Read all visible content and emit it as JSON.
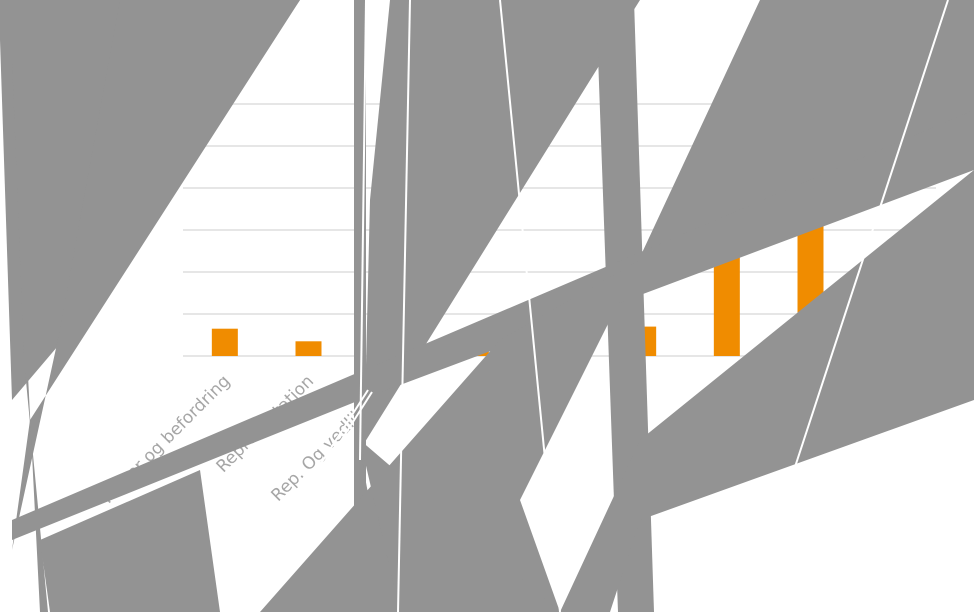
{
  "chart_data": {
    "type": "bar",
    "categories": [
      "Reiser og befordring",
      "Representation",
      "Rep. Og vedlikehold",
      "",
      "",
      "",
      "",
      "",
      ""
    ],
    "values": [
      6.5,
      3.5,
      0,
      1.2,
      2.0,
      7.0,
      33.0,
      37.0,
      0
    ],
    "ylim": [
      0,
      60
    ],
    "grid": true,
    "bar_color": "#f08c00",
    "grid_color": "#e6e6e6",
    "label_color": "#a6a6a6",
    "overlay_color": "#939393"
  }
}
